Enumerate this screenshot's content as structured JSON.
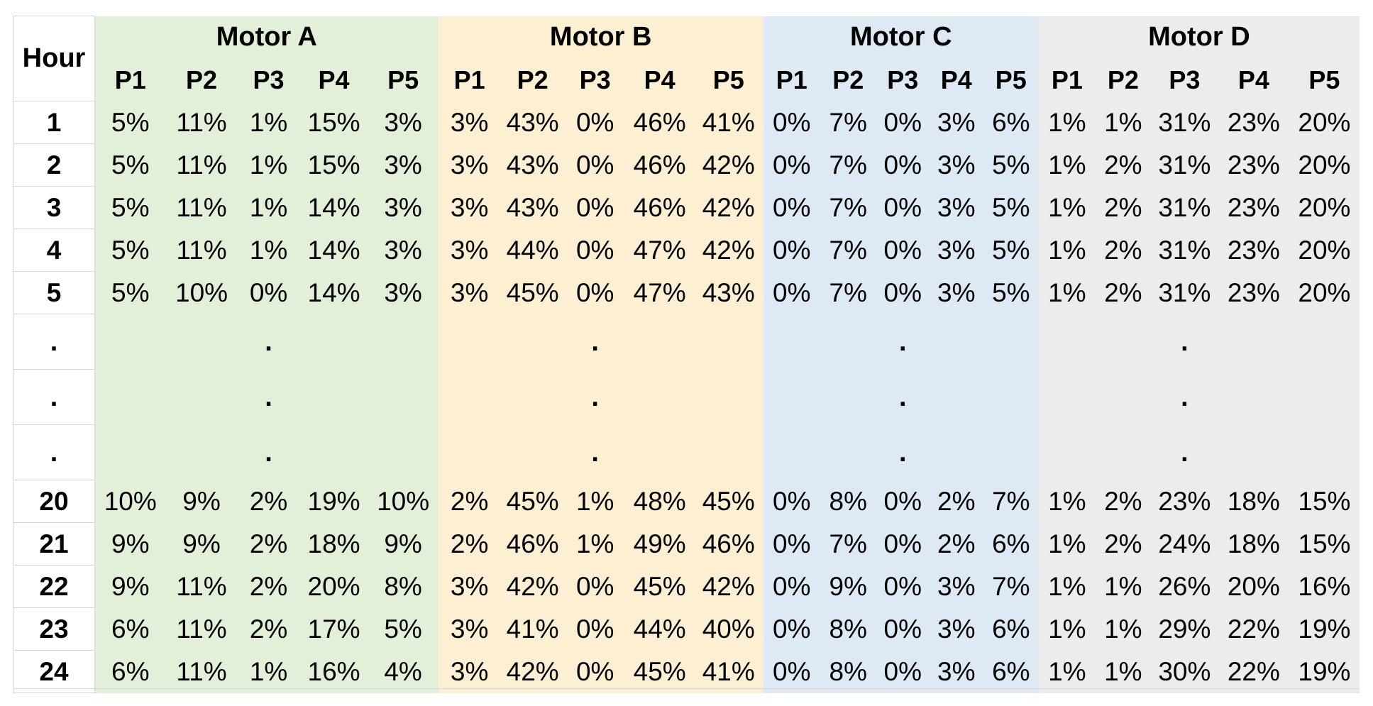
{
  "chart_data": {
    "type": "table",
    "row_header_label": "Hour",
    "motors": [
      {
        "name": "Motor A",
        "color": "#e2efd9"
      },
      {
        "name": "Motor B",
        "color": "#fcefd2"
      },
      {
        "name": "Motor C",
        "color": "#ddeaf6"
      },
      {
        "name": "Motor D",
        "color": "#ececec"
      }
    ],
    "columns": [
      "P1",
      "P2",
      "P3",
      "P4",
      "P5"
    ],
    "ellipsis": ".",
    "rows_top": [
      {
        "hour": "1",
        "values": [
          [
            "5%",
            "11%",
            "1%",
            "15%",
            "3%"
          ],
          [
            "3%",
            "43%",
            "0%",
            "46%",
            "41%"
          ],
          [
            "0%",
            "7%",
            "0%",
            "3%",
            "6%"
          ],
          [
            "1%",
            "1%",
            "31%",
            "23%",
            "20%"
          ]
        ]
      },
      {
        "hour": "2",
        "values": [
          [
            "5%",
            "11%",
            "1%",
            "15%",
            "3%"
          ],
          [
            "3%",
            "43%",
            "0%",
            "46%",
            "42%"
          ],
          [
            "0%",
            "7%",
            "0%",
            "3%",
            "5%"
          ],
          [
            "1%",
            "2%",
            "31%",
            "23%",
            "20%"
          ]
        ]
      },
      {
        "hour": "3",
        "values": [
          [
            "5%",
            "11%",
            "1%",
            "14%",
            "3%"
          ],
          [
            "3%",
            "43%",
            "0%",
            "46%",
            "42%"
          ],
          [
            "0%",
            "7%",
            "0%",
            "3%",
            "5%"
          ],
          [
            "1%",
            "2%",
            "31%",
            "23%",
            "20%"
          ]
        ]
      },
      {
        "hour": "4",
        "values": [
          [
            "5%",
            "11%",
            "1%",
            "14%",
            "3%"
          ],
          [
            "3%",
            "44%",
            "0%",
            "47%",
            "42%"
          ],
          [
            "0%",
            "7%",
            "0%",
            "3%",
            "5%"
          ],
          [
            "1%",
            "2%",
            "31%",
            "23%",
            "20%"
          ]
        ]
      },
      {
        "hour": "5",
        "values": [
          [
            "5%",
            "10%",
            "0%",
            "14%",
            "3%"
          ],
          [
            "3%",
            "45%",
            "0%",
            "47%",
            "43%"
          ],
          [
            "0%",
            "7%",
            "0%",
            "3%",
            "5%"
          ],
          [
            "1%",
            "2%",
            "31%",
            "23%",
            "20%"
          ]
        ]
      }
    ],
    "gap_rows": 3,
    "rows_bottom": [
      {
        "hour": "20",
        "values": [
          [
            "10%",
            "9%",
            "2%",
            "19%",
            "10%"
          ],
          [
            "2%",
            "45%",
            "1%",
            "48%",
            "45%"
          ],
          [
            "0%",
            "8%",
            "0%",
            "2%",
            "7%"
          ],
          [
            "1%",
            "2%",
            "23%",
            "18%",
            "15%"
          ]
        ]
      },
      {
        "hour": "21",
        "values": [
          [
            "9%",
            "9%",
            "2%",
            "18%",
            "9%"
          ],
          [
            "2%",
            "46%",
            "1%",
            "49%",
            "46%"
          ],
          [
            "0%",
            "7%",
            "0%",
            "2%",
            "6%"
          ],
          [
            "1%",
            "2%",
            "24%",
            "18%",
            "15%"
          ]
        ]
      },
      {
        "hour": "22",
        "values": [
          [
            "9%",
            "11%",
            "2%",
            "20%",
            "8%"
          ],
          [
            "3%",
            "42%",
            "0%",
            "45%",
            "42%"
          ],
          [
            "0%",
            "9%",
            "0%",
            "3%",
            "7%"
          ],
          [
            "1%",
            "1%",
            "26%",
            "20%",
            "16%"
          ]
        ]
      },
      {
        "hour": "23",
        "values": [
          [
            "6%",
            "11%",
            "2%",
            "17%",
            "5%"
          ],
          [
            "3%",
            "41%",
            "0%",
            "44%",
            "40%"
          ],
          [
            "0%",
            "8%",
            "0%",
            "3%",
            "6%"
          ],
          [
            "1%",
            "1%",
            "29%",
            "22%",
            "19%"
          ]
        ]
      },
      {
        "hour": "24",
        "values": [
          [
            "6%",
            "11%",
            "1%",
            "16%",
            "4%"
          ],
          [
            "3%",
            "42%",
            "0%",
            "45%",
            "41%"
          ],
          [
            "0%",
            "8%",
            "0%",
            "3%",
            "6%"
          ],
          [
            "1%",
            "1%",
            "30%",
            "22%",
            "19%"
          ]
        ]
      }
    ]
  }
}
